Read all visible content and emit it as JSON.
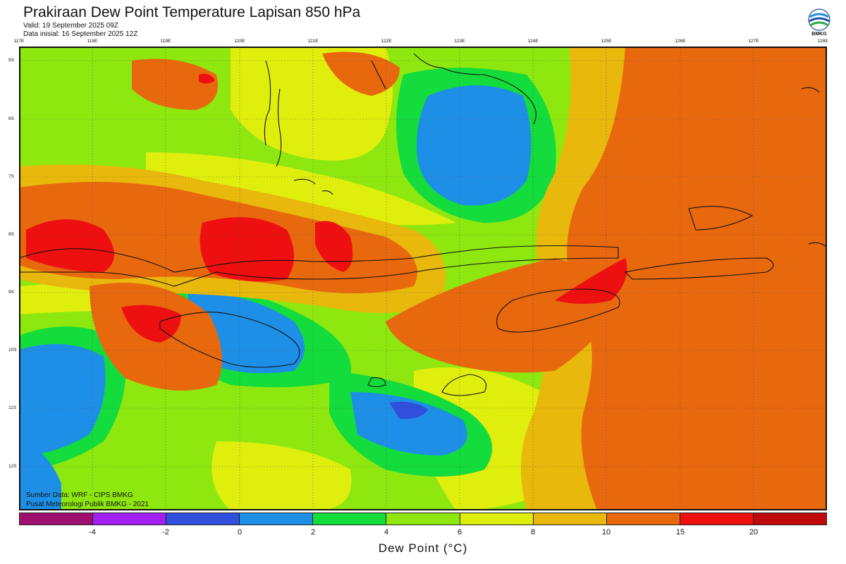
{
  "header": {
    "title": "Prakiraan Dew Point Temperature Lapisan 850 hPa",
    "valid": "Valid: 19 September 2025 09Z",
    "initial": "Data inisial: 16 September 2025 12Z"
  },
  "logo": {
    "label": "BMKG",
    "icon": "bmkg-logo"
  },
  "map": {
    "longitude_labels": [
      "117E",
      "118E",
      "119E",
      "120E",
      "121E",
      "122E",
      "123E",
      "124E",
      "125E",
      "126E",
      "127E",
      "128E"
    ],
    "latitude_labels": [
      "5S",
      "6S",
      "7S",
      "8S",
      "9S",
      "10S",
      "11S",
      "12S"
    ],
    "colors": {
      "lt_neg4": "#9e0f6e",
      "neg4_neg2": "#a11ff0",
      "neg2_0": "#2f4fdc",
      "c0_2": "#1e8fe6",
      "c2_4": "#14dc3c",
      "c4_6": "#8ee810",
      "c6_8": "#e0ee0e",
      "c8_10": "#e8b80c",
      "c10_15": "#e8680e",
      "c15_20": "#ee1010",
      "gt20": "#c00a0a"
    }
  },
  "credits": {
    "source": "Sumber Data: WRF - CIPS BMKG",
    "org": "Pusat Meteorologi Publik BMKG - 2021"
  },
  "colorbar": {
    "title": "Dew Point (°C)",
    "tick_labels": [
      "-4",
      "-2",
      "0",
      "2",
      "4",
      "6",
      "8",
      "10",
      "15",
      "20"
    ],
    "colors": [
      "#9e0f6e",
      "#a11ff0",
      "#2f4fdc",
      "#1e8fe6",
      "#14dc3c",
      "#8ee810",
      "#e0ee0e",
      "#e8b80c",
      "#e8680e",
      "#ee1010",
      "#c00a0a"
    ]
  }
}
